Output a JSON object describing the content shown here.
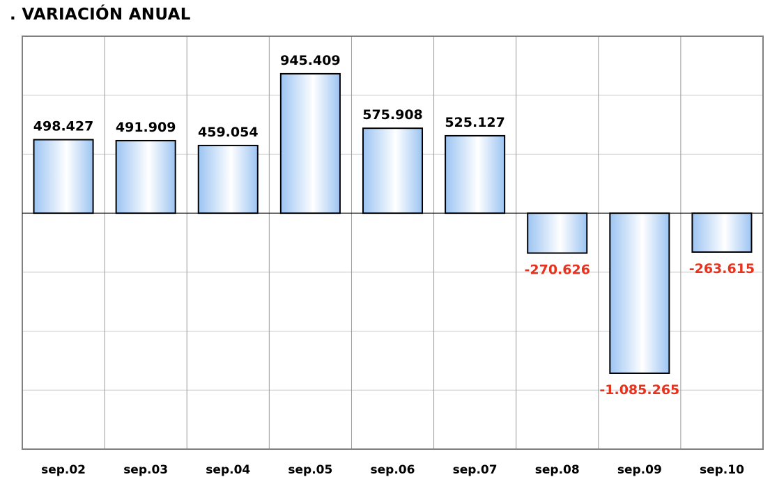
{
  "chart_data": {
    "type": "bar",
    "title": ". VARIACIÓN ANUAL",
    "categories": [
      "sep.02",
      "sep.03",
      "sep.04",
      "sep.05",
      "sep.06",
      "sep.07",
      "sep.08",
      "sep.09",
      "sep.10"
    ],
    "values": [
      498427,
      491909,
      459054,
      945409,
      575908,
      525127,
      -270626,
      -1085265,
      -263615
    ],
    "value_labels": [
      "498.427",
      "491.909",
      "459.054",
      "945.409",
      "575.908",
      "525.127",
      "-270.626",
      "-1.085.265",
      "-263.615"
    ],
    "xlabel": "",
    "ylabel": "",
    "ylim": [
      -1600000,
      1200000
    ],
    "grid": true,
    "legend": "none",
    "colors": {
      "bar_edge": "#9cc4f2",
      "bar_center": "#ffffff",
      "bar_outline": "#000000",
      "positive_label": "#000000",
      "negative_label": "#e8321e",
      "gridline": "#c8c8c8",
      "frame": "#808080"
    }
  }
}
